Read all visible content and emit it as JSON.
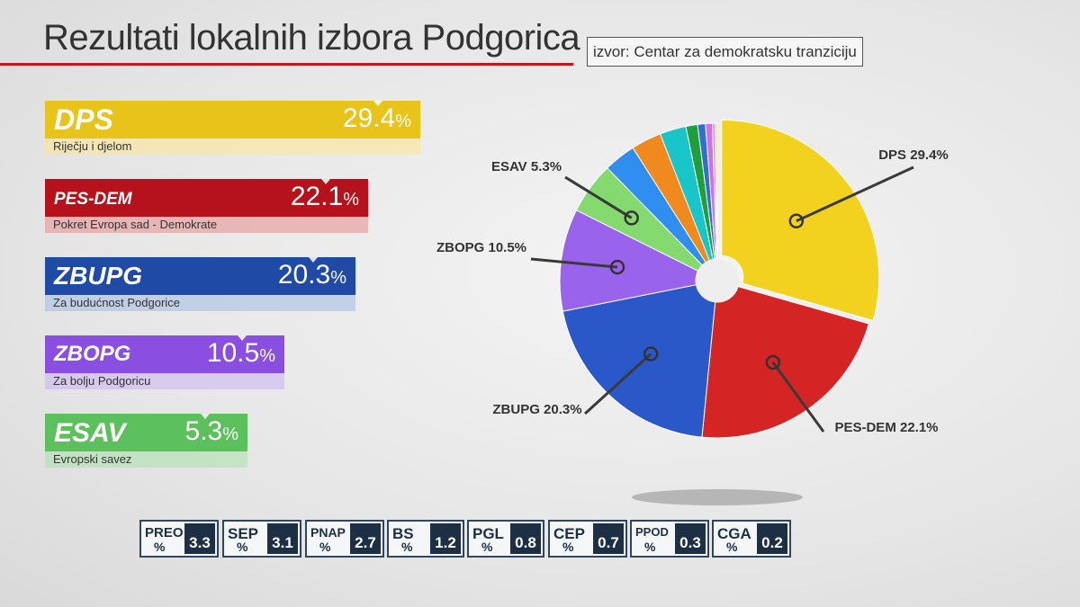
{
  "header": {
    "title": "Rezultati lokalnih izbora Podgorica",
    "source": "izvor: Centar za demokratsku tranziciju"
  },
  "cards": [
    {
      "abbr": "DPS",
      "value": "29.4",
      "pct": "%",
      "subtitle": "Riječju i djelom",
      "color": "#e8c31a"
    },
    {
      "abbr": "PES-DEM",
      "value": "22.1",
      "pct": "%",
      "subtitle": "Pokret Evropa sad - Demokrate",
      "color": "#b5121b"
    },
    {
      "abbr": "ZBUPG",
      "value": "20.3",
      "pct": "%",
      "subtitle": "Za budućnost Podgorice",
      "color": "#1f4aa6"
    },
    {
      "abbr": "ZBOPG",
      "value": "10.5",
      "pct": "%",
      "subtitle": "Za bolju Podgoricu",
      "color": "#8a4fe0"
    },
    {
      "abbr": "ESAV",
      "value": "5.3",
      "pct": "%",
      "subtitle": "Evropski savez",
      "color": "#5cc05c"
    }
  ],
  "minors": [
    {
      "abbr": "PREO",
      "pct": "%",
      "value": "3.3"
    },
    {
      "abbr": "SEP",
      "pct": "%",
      "value": "3.1"
    },
    {
      "abbr": "PNAP",
      "pct": "%",
      "value": "2.7"
    },
    {
      "abbr": "BS",
      "pct": "%",
      "value": "1.2"
    },
    {
      "abbr": "PGL",
      "pct": "%",
      "value": "0.8"
    },
    {
      "abbr": "CEP",
      "pct": "%",
      "value": "0.7"
    },
    {
      "abbr": "PPOD",
      "pct": "%",
      "value": "0.3"
    },
    {
      "abbr": "CGA",
      "pct": "%",
      "value": "0.2"
    }
  ],
  "chart_data": {
    "type": "pie",
    "title": "Rezultati lokalnih izbora Podgorica",
    "categories": [
      "DPS",
      "PES-DEM",
      "ZBUPG",
      "ZBOPG",
      "ESAV",
      "PREO",
      "SEP",
      "PNAP",
      "BS",
      "PGL",
      "CEP",
      "PPOD",
      "CGA"
    ],
    "values": [
      29.4,
      22.1,
      20.3,
      10.5,
      5.3,
      3.3,
      3.1,
      2.7,
      1.2,
      0.8,
      0.7,
      0.3,
      0.2
    ],
    "colors": [
      "#f2d21e",
      "#d42424",
      "#2b58c9",
      "#9a63ec",
      "#84da6e",
      "#2f8ef0",
      "#f08a1e",
      "#18c5c8",
      "#1e9f3c",
      "#2e6fd0",
      "#d36ee8",
      "#b7a7ee",
      "#ffcc40"
    ],
    "labels": [
      "DPS 29.4%",
      "PES-DEM 22.1%",
      "ZBUPG 20.3%",
      "ZBOPG 10.5%",
      "ESAV 5.3%"
    ]
  }
}
